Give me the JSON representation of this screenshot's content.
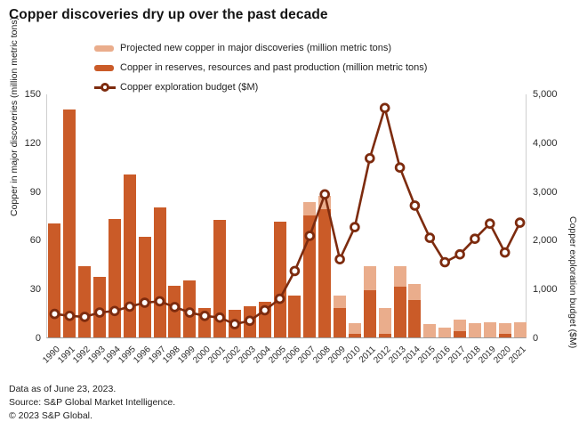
{
  "title": "Copper discoveries dry up over the past decade",
  "legend": {
    "items": [
      {
        "label": "Projected new copper in major discoveries (million metric tons)",
        "marker": "swatch-light"
      },
      {
        "label": "Copper in reserves, resources and past production (million metric tons)",
        "marker": "swatch-dark"
      },
      {
        "label": "Copper exploration budget ($M)",
        "marker": "line-circle"
      }
    ]
  },
  "colors": {
    "projected_bar": "#eaad8c",
    "reserves_bar": "#ca5b28",
    "budget_line": "#7d2b0e",
    "axis_text": "#2b2b2b"
  },
  "footer": {
    "line1": "Data as of June 23, 2023.",
    "line2": "Source: S&P Global Market Intelligence.",
    "line3": "© 2023 S&P Global."
  },
  "chart_data": {
    "type": "bar",
    "subtype": "stacked-bar-with-line",
    "title": "Copper discoveries dry up over the past decade",
    "categories": [
      "1990",
      "1991",
      "1992",
      "1993",
      "1994",
      "1995",
      "1996",
      "1997",
      "1998",
      "1999",
      "2000",
      "2001",
      "2002",
      "2003",
      "2004",
      "2005",
      "2006",
      "2007",
      "2008",
      "2009",
      "2010",
      "2011",
      "2012",
      "2013",
      "2014",
      "2015",
      "2016",
      "2017",
      "2018",
      "2019",
      "2020",
      "2021"
    ],
    "series": [
      {
        "name": "Copper in reserves, resources and past production (million metric tons)",
        "type": "bar",
        "axis": "left",
        "color": "#ca5b28",
        "values": [
          70,
          140,
          44,
          37,
          73,
          100,
          62,
          80,
          32,
          35,
          18,
          72,
          17,
          19,
          22,
          71,
          26,
          75,
          79,
          18,
          2,
          29,
          2,
          31,
          23,
          0,
          0,
          4,
          0,
          0,
          2,
          0
        ]
      },
      {
        "name": "Projected new copper in major discoveries (million metric tons)",
        "type": "bar",
        "axis": "left",
        "color": "#eaad8c",
        "values": [
          0,
          0,
          0,
          0,
          0,
          0,
          0,
          0,
          0,
          0,
          0,
          0,
          0,
          0,
          0,
          0,
          0,
          8,
          8,
          8,
          7,
          15,
          16,
          13,
          10,
          8,
          6,
          7,
          8.5,
          9.5,
          7,
          9.5
        ]
      },
      {
        "name": "Copper exploration budget ($M)",
        "type": "line",
        "axis": "right",
        "color": "#7d2b0e",
        "values": [
          500,
          460,
          440,
          530,
          560,
          650,
          730,
          760,
          640,
          530,
          460,
          425,
          290,
          360,
          575,
          810,
          1380,
          2100,
          2950,
          1620,
          2280,
          3690,
          4720,
          3500,
          2720,
          2060,
          1560,
          1720,
          2040,
          2350,
          1760,
          2370
        ]
      }
    ],
    "left_axis": {
      "title": "Copper in major discoveries (million metric tons)",
      "min": 0,
      "max": 150,
      "tick_values": [
        0,
        30,
        60,
        90,
        120,
        150
      ],
      "tick_labels": [
        "0",
        "30",
        "60",
        "90",
        "120",
        "150"
      ]
    },
    "right_axis": {
      "title": "Copper exploration budget ($M)",
      "min": 0,
      "max": 5000,
      "tick_values": [
        0,
        1000,
        2000,
        3000,
        4000,
        5000
      ],
      "tick_labels": [
        "0",
        "1,000",
        "2,000",
        "3,000",
        "4,000",
        "5,000"
      ]
    },
    "legend_position": "top",
    "grid": false
  }
}
